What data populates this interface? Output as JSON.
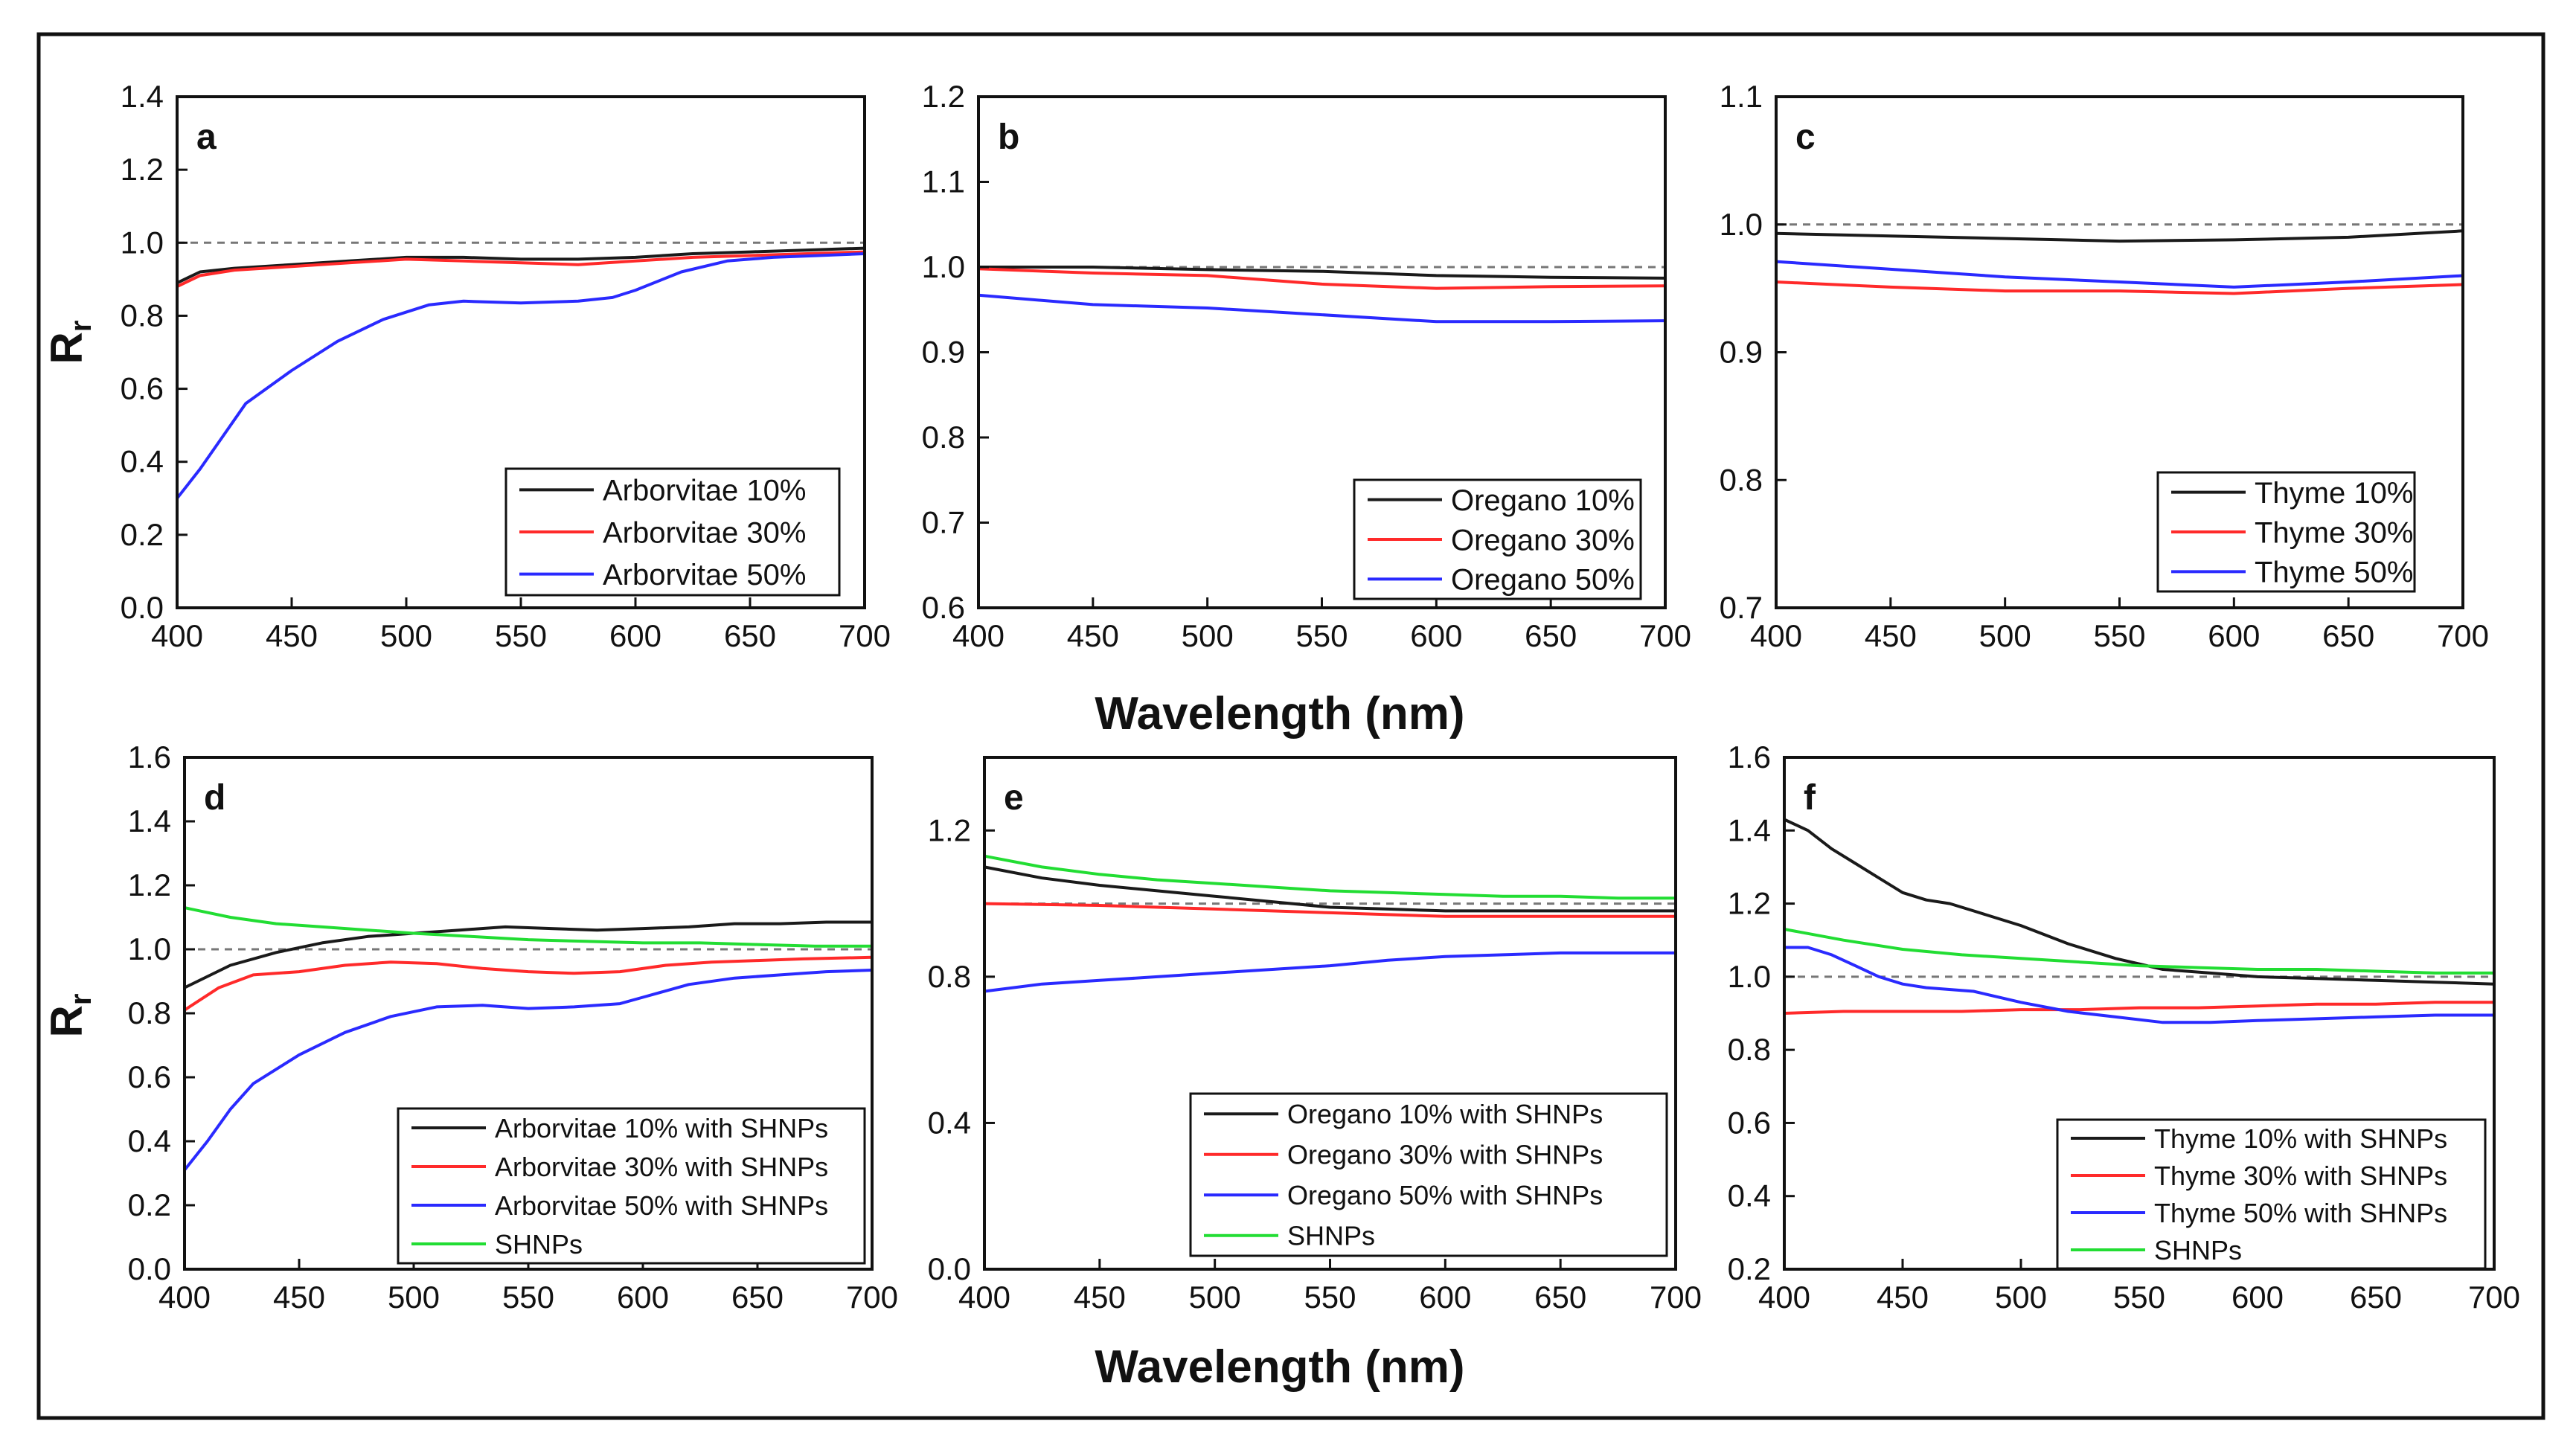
{
  "figure": {
    "shared_xlabel_top": "Wavelength (nm)",
    "shared_xlabel_bottom": "Wavelength (nm)",
    "ylabel_main": "R",
    "ylabel_sub": "r",
    "colors": {
      "black": "#1a1a1a",
      "red": "#ff2a2a",
      "blue": "#2a2aff",
      "green": "#22dd33",
      "ref": "#777777"
    }
  },
  "chart_data": [
    {
      "type": "line",
      "panel": "a",
      "xlabel": "Wavelength (nm)",
      "ylabel": "Rr",
      "xlim": [
        400,
        700
      ],
      "ylim": [
        0.0,
        1.4
      ],
      "xticks": [
        400,
        450,
        500,
        550,
        600,
        650,
        700
      ],
      "yticks": [
        "0.0",
        "0.2",
        "0.4",
        "0.6",
        "0.8",
        "1.0",
        "1.2",
        "1.4"
      ],
      "reference_line": 1.0,
      "series": [
        {
          "name": "Arborvitae 10%",
          "color": "#1a1a1a",
          "x": [
            400,
            410,
            425,
            450,
            475,
            500,
            525,
            550,
            575,
            600,
            625,
            650,
            675,
            700
          ],
          "y": [
            0.89,
            0.92,
            0.93,
            0.94,
            0.95,
            0.96,
            0.96,
            0.955,
            0.955,
            0.96,
            0.97,
            0.975,
            0.98,
            0.985
          ]
        },
        {
          "name": "Arborvitae 30%",
          "color": "#ff2a2a",
          "x": [
            400,
            410,
            425,
            450,
            475,
            500,
            525,
            550,
            575,
            600,
            625,
            650,
            675,
            700
          ],
          "y": [
            0.88,
            0.91,
            0.925,
            0.935,
            0.945,
            0.955,
            0.95,
            0.945,
            0.94,
            0.95,
            0.96,
            0.965,
            0.97,
            0.975
          ]
        },
        {
          "name": "Arborvitae 50%",
          "color": "#2a2aff",
          "x": [
            400,
            410,
            420,
            430,
            450,
            470,
            490,
            510,
            525,
            550,
            575,
            590,
            600,
            620,
            640,
            660,
            680,
            700
          ],
          "y": [
            0.3,
            0.38,
            0.47,
            0.56,
            0.65,
            0.73,
            0.79,
            0.83,
            0.84,
            0.835,
            0.84,
            0.85,
            0.87,
            0.92,
            0.95,
            0.96,
            0.965,
            0.97
          ]
        }
      ]
    },
    {
      "type": "line",
      "panel": "b",
      "xlabel": "Wavelength (nm)",
      "ylabel": "Rr",
      "xlim": [
        400,
        700
      ],
      "ylim": [
        0.6,
        1.2
      ],
      "xticks": [
        400,
        450,
        500,
        550,
        600,
        650,
        700
      ],
      "yticks": [
        "0.6",
        "0.7",
        "0.8",
        "0.9",
        "1.0",
        "1.1",
        "1.2"
      ],
      "reference_line": 1.0,
      "series": [
        {
          "name": "Oregano 10%",
          "color": "#1a1a1a",
          "x": [
            400,
            450,
            500,
            550,
            600,
            650,
            700
          ],
          "y": [
            1.0,
            1.0,
            0.997,
            0.995,
            0.99,
            0.988,
            0.987
          ]
        },
        {
          "name": "Oregano 30%",
          "color": "#ff2a2a",
          "x": [
            400,
            450,
            500,
            550,
            600,
            650,
            700
          ],
          "y": [
            0.998,
            0.993,
            0.99,
            0.98,
            0.975,
            0.977,
            0.978
          ]
        },
        {
          "name": "Oregano 50%",
          "color": "#2a2aff",
          "x": [
            400,
            450,
            500,
            550,
            600,
            650,
            700
          ],
          "y": [
            0.967,
            0.956,
            0.952,
            0.944,
            0.936,
            0.936,
            0.937
          ]
        }
      ]
    },
    {
      "type": "line",
      "panel": "c",
      "xlabel": "Wavelength (nm)",
      "ylabel": "Rr",
      "xlim": [
        400,
        700
      ],
      "ylim": [
        0.7,
        1.1
      ],
      "xticks": [
        400,
        450,
        500,
        550,
        600,
        650,
        700
      ],
      "yticks": [
        "0.7",
        "0.8",
        "0.9",
        "1.0",
        "1.1"
      ],
      "reference_line": 1.0,
      "series": [
        {
          "name": "Thyme 10%",
          "color": "#1a1a1a",
          "x": [
            400,
            450,
            500,
            550,
            600,
            650,
            700
          ],
          "y": [
            0.993,
            0.991,
            0.989,
            0.987,
            0.988,
            0.99,
            0.995
          ]
        },
        {
          "name": "Thyme 30%",
          "color": "#ff2a2a",
          "x": [
            400,
            450,
            500,
            550,
            600,
            650,
            700
          ],
          "y": [
            0.955,
            0.951,
            0.948,
            0.948,
            0.946,
            0.95,
            0.953
          ]
        },
        {
          "name": "Thyme 50%",
          "color": "#2a2aff",
          "x": [
            400,
            450,
            500,
            550,
            600,
            650,
            700
          ],
          "y": [
            0.971,
            0.965,
            0.959,
            0.955,
            0.951,
            0.955,
            0.96
          ]
        }
      ]
    },
    {
      "type": "line",
      "panel": "d",
      "xlabel": "Wavelength (nm)",
      "ylabel": "Rr",
      "xlim": [
        400,
        700
      ],
      "ylim": [
        0.0,
        1.6
      ],
      "xticks": [
        400,
        450,
        500,
        550,
        600,
        650,
        700
      ],
      "yticks": [
        "0.0",
        "0.2",
        "0.4",
        "0.6",
        "0.8",
        "1.0",
        "1.2",
        "1.4",
        "1.6"
      ],
      "reference_line": 1.0,
      "series": [
        {
          "name": "Arborvitae 10% with SHNPs",
          "color": "#1a1a1a",
          "x": [
            400,
            420,
            440,
            460,
            480,
            500,
            520,
            540,
            560,
            580,
            600,
            620,
            640,
            660,
            680,
            700
          ],
          "y": [
            0.88,
            0.95,
            0.99,
            1.02,
            1.04,
            1.05,
            1.06,
            1.07,
            1.065,
            1.06,
            1.065,
            1.07,
            1.08,
            1.08,
            1.085,
            1.085
          ]
        },
        {
          "name": "Arborvitae 30% with SHNPs",
          "color": "#ff2a2a",
          "x": [
            400,
            415,
            430,
            450,
            470,
            490,
            510,
            530,
            550,
            570,
            590,
            610,
            630,
            650,
            670,
            700
          ],
          "y": [
            0.81,
            0.88,
            0.92,
            0.93,
            0.95,
            0.96,
            0.955,
            0.94,
            0.93,
            0.925,
            0.93,
            0.95,
            0.96,
            0.965,
            0.97,
            0.975
          ]
        },
        {
          "name": "Arborvitae 50% with SHNPs",
          "color": "#2a2aff",
          "x": [
            400,
            410,
            420,
            430,
            450,
            470,
            490,
            510,
            530,
            550,
            570,
            590,
            600,
            620,
            640,
            660,
            680,
            700
          ],
          "y": [
            0.31,
            0.4,
            0.5,
            0.58,
            0.67,
            0.74,
            0.79,
            0.82,
            0.825,
            0.815,
            0.82,
            0.83,
            0.85,
            0.89,
            0.91,
            0.92,
            0.93,
            0.935
          ]
        },
        {
          "name": "SHNPs",
          "color": "#22dd33",
          "x": [
            400,
            420,
            440,
            460,
            480,
            500,
            525,
            550,
            575,
            600,
            625,
            650,
            675,
            700
          ],
          "y": [
            1.13,
            1.1,
            1.08,
            1.07,
            1.06,
            1.05,
            1.04,
            1.03,
            1.025,
            1.02,
            1.02,
            1.015,
            1.01,
            1.01
          ]
        }
      ]
    },
    {
      "type": "line",
      "panel": "e",
      "xlabel": "Wavelength (nm)",
      "ylabel": "Rr",
      "xlim": [
        400,
        700
      ],
      "ylim": [
        0.0,
        1.4
      ],
      "xticks": [
        400,
        450,
        500,
        550,
        600,
        650,
        700
      ],
      "yticks": [
        "0.0",
        "0.4",
        "0.8",
        "1.2"
      ],
      "reference_line": 1.0,
      "series": [
        {
          "name": "Oregano 10% with SHNPs",
          "color": "#1a1a1a",
          "x": [
            400,
            425,
            450,
            475,
            500,
            525,
            550,
            575,
            600,
            625,
            650,
            675,
            700
          ],
          "y": [
            1.1,
            1.07,
            1.05,
            1.035,
            1.02,
            1.005,
            0.99,
            0.985,
            0.98,
            0.98,
            0.98,
            0.98,
            0.98
          ]
        },
        {
          "name": "Oregano 30% with SHNPs",
          "color": "#ff2a2a",
          "x": [
            400,
            450,
            500,
            550,
            600,
            650,
            700
          ],
          "y": [
            1.0,
            0.995,
            0.985,
            0.975,
            0.965,
            0.965,
            0.965
          ]
        },
        {
          "name": "Oregano 50% with SHNPs",
          "color": "#2a2aff",
          "x": [
            400,
            425,
            450,
            475,
            500,
            525,
            550,
            575,
            600,
            625,
            650,
            675,
            700
          ],
          "y": [
            0.76,
            0.78,
            0.79,
            0.8,
            0.81,
            0.82,
            0.83,
            0.845,
            0.855,
            0.86,
            0.865,
            0.865,
            0.865
          ]
        },
        {
          "name": "SHNPs",
          "color": "#22dd33",
          "x": [
            400,
            425,
            450,
            475,
            500,
            525,
            550,
            575,
            600,
            625,
            650,
            675,
            700
          ],
          "y": [
            1.13,
            1.1,
            1.08,
            1.065,
            1.055,
            1.045,
            1.035,
            1.03,
            1.025,
            1.02,
            1.02,
            1.015,
            1.015
          ]
        }
      ]
    },
    {
      "type": "line",
      "panel": "f",
      "xlabel": "Wavelength (nm)",
      "ylabel": "Rr",
      "xlim": [
        400,
        700
      ],
      "ylim": [
        0.2,
        1.6
      ],
      "xticks": [
        400,
        450,
        500,
        550,
        600,
        650,
        700
      ],
      "yticks": [
        "0.2",
        "0.4",
        "0.6",
        "0.8",
        "1.0",
        "1.2",
        "1.4",
        "1.6"
      ],
      "reference_line": 1.0,
      "series": [
        {
          "name": "Thyme 10% with SHNPs",
          "color": "#1a1a1a",
          "x": [
            400,
            410,
            420,
            430,
            440,
            450,
            460,
            470,
            480,
            500,
            520,
            540,
            560,
            580,
            600,
            625,
            650,
            675,
            700
          ],
          "y": [
            1.43,
            1.4,
            1.35,
            1.31,
            1.27,
            1.23,
            1.21,
            1.2,
            1.18,
            1.14,
            1.09,
            1.05,
            1.02,
            1.01,
            1.0,
            0.995,
            0.99,
            0.985,
            0.98
          ]
        },
        {
          "name": "Thyme 30% with SHNPs",
          "color": "#ff2a2a",
          "x": [
            400,
            425,
            450,
            475,
            500,
            525,
            550,
            575,
            600,
            625,
            650,
            675,
            700
          ],
          "y": [
            0.9,
            0.905,
            0.905,
            0.905,
            0.91,
            0.91,
            0.915,
            0.915,
            0.92,
            0.925,
            0.925,
            0.93,
            0.93
          ]
        },
        {
          "name": "Thyme 50% with SHNPs",
          "color": "#2a2aff",
          "x": [
            400,
            410,
            420,
            430,
            440,
            450,
            460,
            480,
            500,
            520,
            540,
            560,
            580,
            600,
            625,
            650,
            675,
            700
          ],
          "y": [
            1.08,
            1.08,
            1.06,
            1.03,
            1.0,
            0.98,
            0.97,
            0.96,
            0.93,
            0.905,
            0.89,
            0.875,
            0.875,
            0.88,
            0.885,
            0.89,
            0.895,
            0.895
          ]
        },
        {
          "name": "SHNPs",
          "color": "#22dd33",
          "x": [
            400,
            425,
            450,
            475,
            500,
            525,
            550,
            575,
            600,
            625,
            650,
            675,
            700
          ],
          "y": [
            1.13,
            1.1,
            1.075,
            1.06,
            1.05,
            1.04,
            1.03,
            1.025,
            1.02,
            1.02,
            1.015,
            1.01,
            1.01
          ]
        }
      ]
    }
  ]
}
